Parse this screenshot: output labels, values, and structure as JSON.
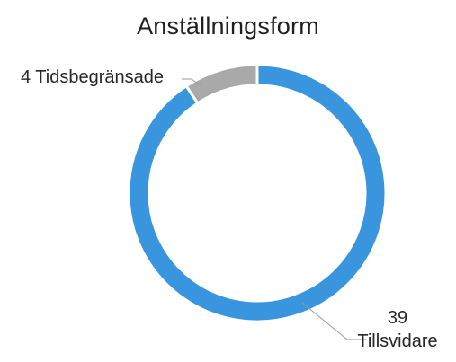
{
  "chart_data": {
    "type": "pie",
    "title": "Anställningsform",
    "categories": [
      "Tillsvidare",
      "Tidsbegränsade"
    ],
    "values": [
      39,
      4
    ],
    "slices": [
      {
        "label": "Tillsvidare",
        "value": 39,
        "display": [
          "39",
          "Tillsvidare"
        ],
        "color": "#3a95df"
      },
      {
        "label": "Tidsbegränsade",
        "value": 4,
        "display": [
          "4 Tidsbegränsade"
        ],
        "color": "#a9a9a9"
      }
    ],
    "legend": "none",
    "donut": true
  }
}
